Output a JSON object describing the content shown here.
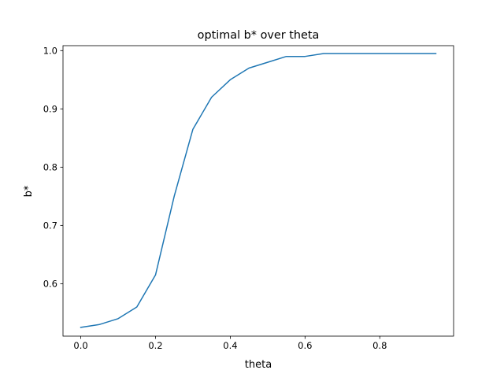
{
  "chart_data": {
    "type": "line",
    "title": "optimal b* over theta",
    "xlabel": "theta",
    "ylabel": "b*",
    "xlim": [
      -0.0475,
      0.9975
    ],
    "ylim": [
      0.51,
      1.0085
    ],
    "x_ticks": [
      0.0,
      0.2,
      0.4,
      0.6,
      0.8
    ],
    "x_tick_labels": [
      "0.0",
      "0.2",
      "0.4",
      "0.6",
      "0.8"
    ],
    "y_ticks": [
      0.6,
      0.7,
      0.8,
      0.9,
      1.0
    ],
    "y_tick_labels": [
      "0.6",
      "0.7",
      "0.8",
      "0.9",
      "1.0"
    ],
    "grid": false,
    "series": [
      {
        "color": "#1f77b4",
        "x": [
          0.0,
          0.05,
          0.1,
          0.15,
          0.2,
          0.25,
          0.3,
          0.35,
          0.4,
          0.45,
          0.5,
          0.55,
          0.6,
          0.65,
          0.7,
          0.75,
          0.8,
          0.85,
          0.9,
          0.95
        ],
        "y": [
          0.525,
          0.53,
          0.54,
          0.56,
          0.615,
          0.75,
          0.865,
          0.92,
          0.95,
          0.97,
          0.98,
          0.99,
          0.99,
          0.995,
          0.995,
          0.995,
          0.995,
          0.995,
          0.995,
          0.995
        ]
      }
    ]
  }
}
